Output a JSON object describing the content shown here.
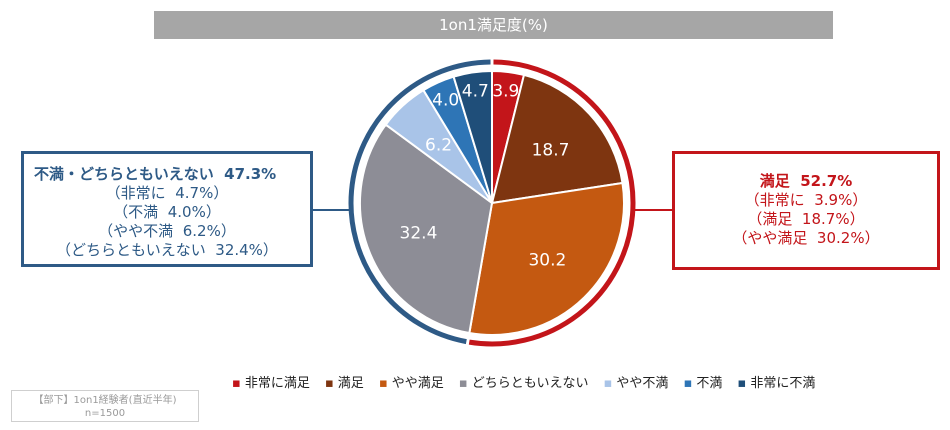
{
  "title": "1on1満足度(%)",
  "chart_data": {
    "type": "pie",
    "title": "1on1満足度(%)",
    "start_angle_deg": 0,
    "direction": "clockwise",
    "slices": [
      {
        "label": "非常に満足",
        "value": 3.9,
        "value_label": "3.9",
        "color": "#c3151a"
      },
      {
        "label": "満足",
        "value": 18.7,
        "value_label": "18.7",
        "color": "#7e3510"
      },
      {
        "label": "やや満足",
        "value": 30.2,
        "value_label": "30.2",
        "color": "#c45911"
      },
      {
        "label": "どちらともいえない",
        "value": 32.4,
        "value_label": "32.4",
        "color": "#8d8d96"
      },
      {
        "label": "やや不満",
        "value": 6.2,
        "value_label": "6.2",
        "color": "#a9c4e8"
      },
      {
        "label": "不満",
        "value": 4.0,
        "value_label": "4.0",
        "color": "#2e75b6"
      },
      {
        "label": "非常に不満",
        "value": 4.7,
        "value_label": "4.7",
        "color": "#1f4e79"
      }
    ],
    "groups": [
      {
        "name": "satisfied",
        "color": "#c3151a",
        "slices": [
          0,
          1,
          2
        ]
      },
      {
        "name": "unsatisfied",
        "color": "#2e5a86",
        "slices": [
          3,
          4,
          5,
          6
        ]
      }
    ],
    "legend_position": "bottom"
  },
  "callouts": {
    "left": {
      "lines": [
        "不満・どちらともいえない  47.3%",
        "（非常に  4.7%）",
        "（不満  4.0%）",
        "（やや不満  6.2%）",
        "（どちらともいえない  32.4%）"
      ],
      "color": "#2e5a86"
    },
    "right": {
      "lines": [
        "満足  52.7%",
        "（非常に  3.9%）",
        "（満足  18.7%）",
        "（やや満足  30.2%）"
      ],
      "color": "#c3151a"
    }
  },
  "legend": {
    "marker": "▪",
    "items": [
      "非常に満足",
      "満足",
      "やや満足",
      "どちらともいえない",
      "やや不満",
      "不満",
      "非常に不満"
    ]
  },
  "note": {
    "line1": "【部下】1on1経験者(直近半年)",
    "line2": "n=1500"
  }
}
